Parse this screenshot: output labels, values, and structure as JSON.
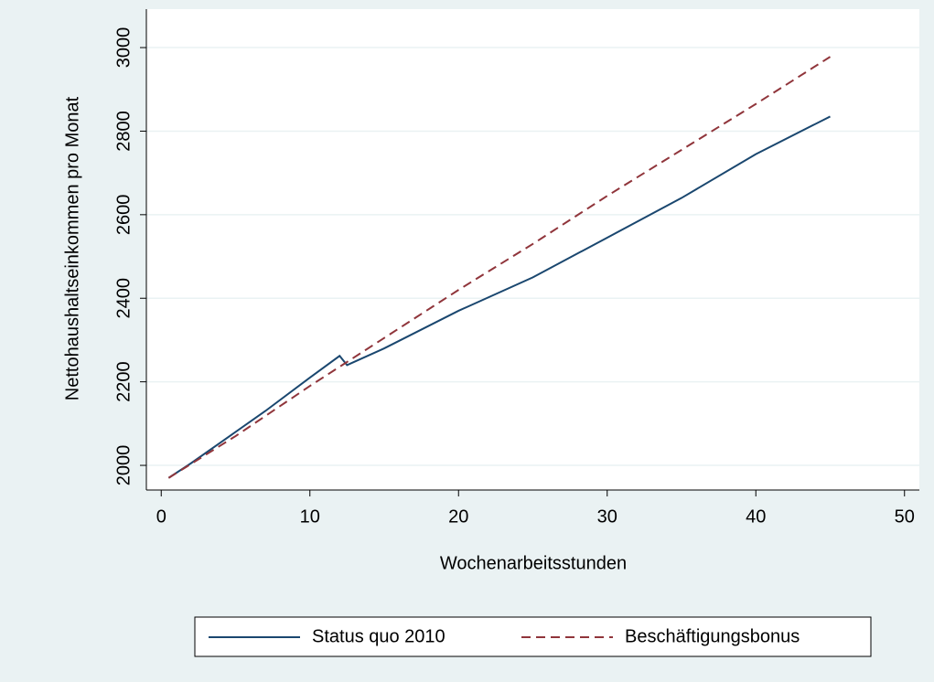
{
  "chart_data": {
    "type": "line",
    "x_label": "Wochenarbeitsstunden",
    "y_label": "Nettohaushaltseinkommen pro Monat",
    "xlim": [
      -1,
      51
    ],
    "xticks": [
      0,
      10,
      20,
      30,
      40,
      50
    ],
    "ylim": [
      1941,
      3092
    ],
    "yticks": [
      2000,
      2200,
      2400,
      2600,
      2800,
      3000
    ],
    "grid": true,
    "legend": "bottom",
    "series": [
      {
        "name": "Status quo 2010",
        "color": "#1a476f",
        "dash": false,
        "x": [
          0.5,
          2,
          4,
          7,
          10,
          12,
          12.5,
          15,
          20,
          25,
          30,
          35,
          40,
          45
        ],
        "values": [
          1970,
          2005,
          2055,
          2130,
          2210,
          2262,
          2240,
          2280,
          2370,
          2450,
          2545,
          2640,
          2745,
          2835
        ]
      },
      {
        "name": "Beschäftigungsbonus",
        "color": "#90353b",
        "dash": true,
        "x": [
          0.5,
          5,
          10,
          15,
          20,
          25,
          30,
          35,
          40,
          45
        ],
        "values": [
          1970,
          2070,
          2190,
          2305,
          2420,
          2530,
          2645,
          2755,
          2865,
          2978
        ]
      }
    ]
  }
}
